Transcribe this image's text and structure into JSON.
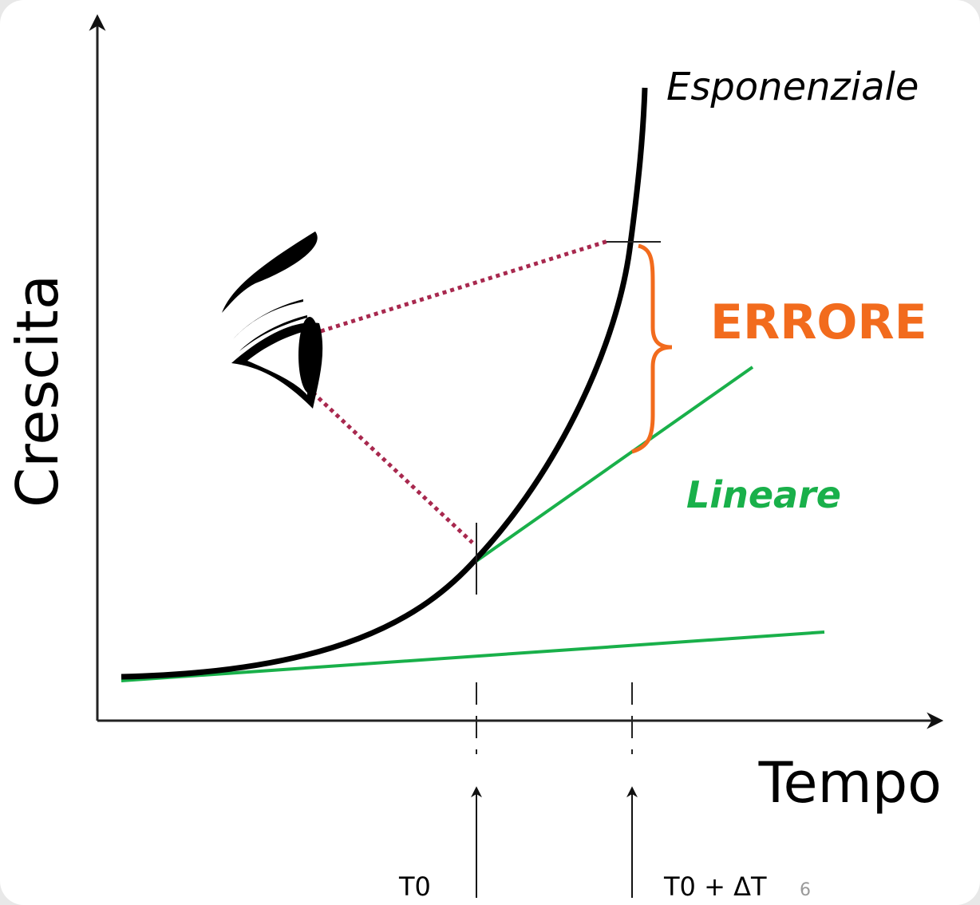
{
  "axes": {
    "y_label": "Crescita",
    "x_label": "Tempo"
  },
  "curves": {
    "exponential": "Esponenziale",
    "linear": "Lineare"
  },
  "error_label": "ERRORE",
  "time_marks": {
    "t0": "T0",
    "t1": "T0 + ΔT"
  },
  "slide_number": "6"
}
